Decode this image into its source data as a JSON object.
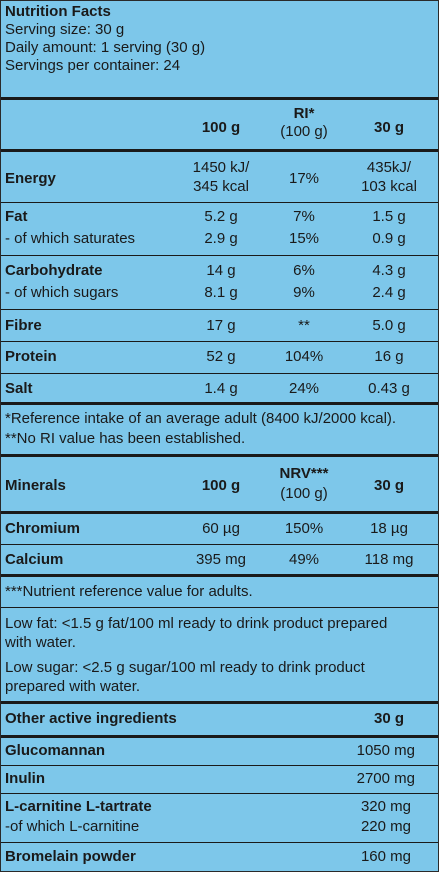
{
  "header": {
    "title": "Nutrition Facts",
    "serving_size": "Serving size: 30 g",
    "daily_amount": "Daily amount: 1 serving (30 g)",
    "servings": "Servings per container: 24"
  },
  "nutrition_table": {
    "col_100g": "100 g",
    "col_ri": "RI*",
    "col_ri_sub": "(100 g)",
    "col_30g": "30 g",
    "energy": {
      "label": "Energy",
      "v100_line1": "1450 kJ/",
      "v100_line2": "345 kcal",
      "ri": "17%",
      "v30_line1": "435kJ/",
      "v30_line2": "103 kcal"
    },
    "fat": {
      "label": "Fat",
      "v100": "5.2 g",
      "ri": "7%",
      "v30": "1.5 g"
    },
    "saturates": {
      "label": "- of which saturates",
      "v100": "2.9 g",
      "ri": "15%",
      "v30": "0.9 g"
    },
    "carbohydrate": {
      "label": "Carbohydrate",
      "v100": "14 g",
      "ri": "6%",
      "v30": "4.3 g"
    },
    "sugars": {
      "label": "- of which sugars",
      "v100": "8.1 g",
      "ri": "9%",
      "v30": "2.4 g"
    },
    "fibre": {
      "label": "Fibre",
      "v100": "17 g",
      "ri": "**",
      "v30": "5.0 g"
    },
    "protein": {
      "label": "Protein",
      "v100": "52 g",
      "ri": "104%",
      "v30": "16 g"
    },
    "salt": {
      "label": "Salt",
      "v100": "1.4 g",
      "ri": "24%",
      "v30": "0.43 g"
    }
  },
  "ri_notes": {
    "line1": "*Reference intake of an average adult (8400 kJ/2000 kcal).",
    "line2": "**No RI value has been established."
  },
  "minerals_table": {
    "title": "Minerals",
    "col_100g": "100 g",
    "col_nrv": "NRV***",
    "col_nrv_sub": "(100 g)",
    "col_30g": "30 g",
    "chromium": {
      "label": "Chromium",
      "v100": "60 µg",
      "nrv": "150%",
      "v30": "18 µg"
    },
    "calcium": {
      "label": "Calcium",
      "v100": "395 mg",
      "nrv": "49%",
      "v30": "118 mg"
    }
  },
  "nrv_note": "***Nutrient reference value for adults.",
  "claims": {
    "low_fat_1": "Low fat: <1.5 g fat/100 ml ready to drink product prepared",
    "low_fat_2": "with water.",
    "low_sugar_1": "Low sugar: <2.5 g sugar/100 ml ready to drink product",
    "low_sugar_2": "prepared with water."
  },
  "active_table": {
    "title": "Other active ingredients",
    "col_30g": "30 g",
    "glucomannan": {
      "label": "Glucomannan",
      "v30": "1050 mg"
    },
    "inulin": {
      "label": "Inulin",
      "v30": "2700 mg"
    },
    "carnitine_tartrate": {
      "label": "L-carnitine L-tartrate",
      "v30": "320 mg"
    },
    "carnitine": {
      "label": "-of which L-carnitine",
      "v30": "220 mg"
    },
    "bromelain": {
      "label": "Bromelain powder",
      "v30": "160 mg"
    }
  }
}
